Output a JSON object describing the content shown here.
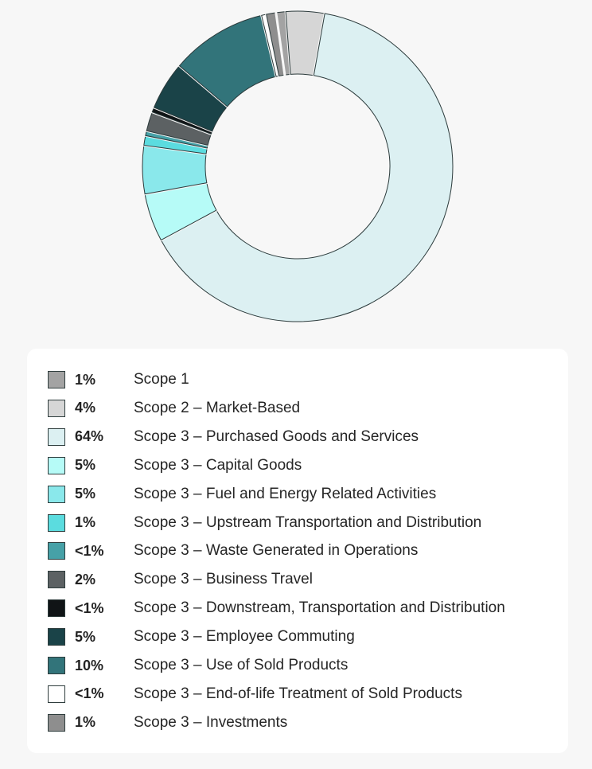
{
  "chart_data": {
    "type": "donut",
    "slices": [
      {
        "label": "Scope 1",
        "pct_label": "1%",
        "value": 1,
        "color": "#a3a3a3"
      },
      {
        "label": "Scope 2 – Market-Based",
        "pct_label": "4%",
        "value": 4,
        "color": "#d6d6d6"
      },
      {
        "label": "Scope 3 – Purchased Goods and Services",
        "pct_label": "64%",
        "value": 64,
        "color": "#dcf0f2"
      },
      {
        "label": "Scope 3 – Capital Goods",
        "pct_label": "5%",
        "value": 5,
        "color": "#b6fbf7"
      },
      {
        "label": "Scope 3 – Fuel and Energy Related Activities",
        "pct_label": "5%",
        "value": 5,
        "color": "#8ae8eb"
      },
      {
        "label": "Scope 3 – Upstream Transportation and Distribution",
        "pct_label": "1%",
        "value": 1,
        "color": "#5bdcdf"
      },
      {
        "label": "Scope 3 – Waste Generated in Operations",
        "pct_label": "<1%",
        "value": 0.5,
        "color": "#46a1a7"
      },
      {
        "label": "Scope 3 – Business Travel",
        "pct_label": "2%",
        "value": 2,
        "color": "#5c6163"
      },
      {
        "label": "Scope 3 – Downstream, Transportation and Distribution",
        "pct_label": "<1%",
        "value": 0.5,
        "color": "#101416"
      },
      {
        "label": "Scope 3 – Employee Commuting",
        "pct_label": "5%",
        "value": 5,
        "color": "#1a4348"
      },
      {
        "label": "Scope 3 – Use of Sold Products",
        "pct_label": "10%",
        "value": 10,
        "color": "#32747a"
      },
      {
        "label": "Scope 3 – End-of-life Treatment of Sold Products",
        "pct_label": "<1%",
        "value": 0.5,
        "color": "#ffffff"
      },
      {
        "label": "Scope 3 – Investments",
        "pct_label": "1%",
        "value": 1,
        "color": "#8e8e8e"
      }
    ]
  }
}
